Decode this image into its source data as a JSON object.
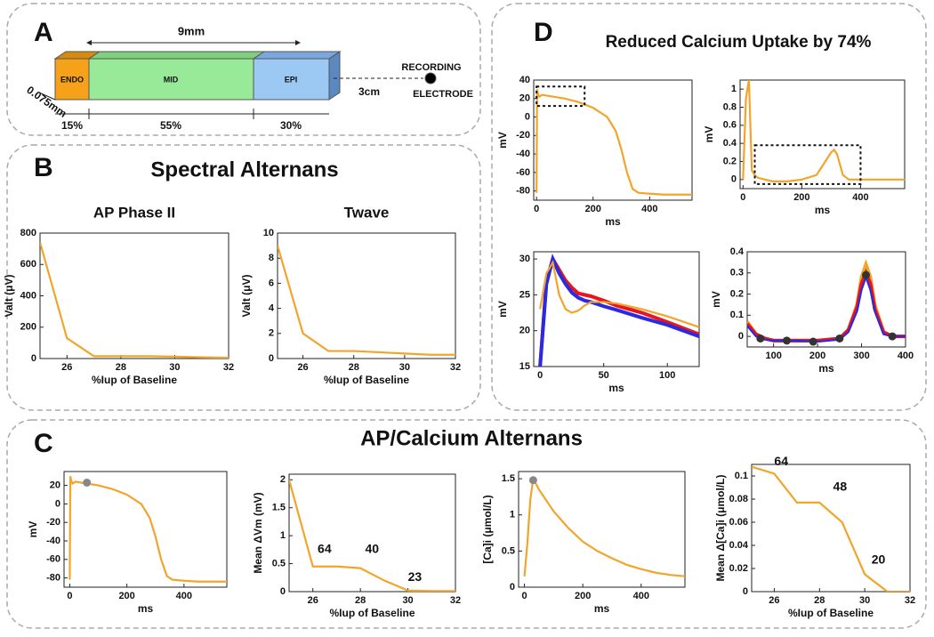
{
  "diagram": {
    "label": "A",
    "length": "9mm",
    "segments": [
      "ENDO",
      "MID",
      "EPI"
    ],
    "thickness": "0.075mm",
    "fractions": [
      "15%",
      "55%",
      "30%"
    ],
    "distance": "3cm",
    "electrode": [
      "RECORDING",
      "ELECTRODE"
    ]
  },
  "panels": {
    "B": {
      "label": "B",
      "title": "Spectral Alternans"
    },
    "C": {
      "label": "C",
      "title": "AP/Calcium Alternans"
    },
    "D": {
      "label": "D",
      "title": "Reduced Calcium Uptake by 74%"
    }
  },
  "chart_data": [
    {
      "type": "line",
      "title": "AP Phase II",
      "xlabel": "%Iup of Baseline",
      "ylabel": "Valt (μV)",
      "xlim": [
        25,
        32
      ],
      "ylim": [
        0,
        800
      ],
      "xticks": [
        26,
        28,
        30,
        32
      ],
      "yticks": [
        0,
        200,
        400,
        600,
        800
      ],
      "x": [
        25,
        26,
        27,
        28,
        29,
        30,
        31,
        32
      ],
      "series": [
        {
          "color": "#f2a52a",
          "values": [
            740,
            130,
            15,
            15,
            15,
            12,
            8,
            5
          ]
        }
      ]
    },
    {
      "type": "line",
      "title": "Twave",
      "xlabel": "%Iup of Baseline",
      "ylabel": "Valt (μV)",
      "xlim": [
        25,
        32
      ],
      "ylim": [
        0,
        10
      ],
      "xticks": [
        26,
        28,
        30,
        32
      ],
      "yticks": [
        0,
        2,
        4,
        6,
        8,
        10
      ],
      "x": [
        25,
        26,
        27,
        28,
        29,
        30,
        31,
        32
      ],
      "series": [
        {
          "color": "#f2a52a",
          "values": [
            9,
            2,
            0.6,
            0.6,
            0.5,
            0.4,
            0.3,
            0.3
          ]
        }
      ]
    },
    {
      "type": "line",
      "xlabel": "ms",
      "ylabel": "mV",
      "xlim": [
        -10,
        550
      ],
      "ylim": [
        -90,
        40
      ],
      "xticks": [
        0,
        200,
        400
      ],
      "yticks": [
        -80,
        -60,
        -40,
        -20,
        0,
        20,
        40
      ],
      "x": [
        0,
        2,
        5,
        10,
        20,
        40,
        60,
        100,
        150,
        200,
        250,
        280,
        300,
        320,
        340,
        360,
        400,
        450,
        500,
        550
      ],
      "series": [
        {
          "color": "#f2a52a",
          "values": [
            -82,
            30,
            25,
            22,
            24,
            23,
            22,
            20,
            16,
            10,
            0,
            -15,
            -35,
            -60,
            -78,
            -82,
            -83,
            -84,
            -84,
            -84
          ]
        }
      ],
      "highlight": {
        "x": [
          0,
          170
        ],
        "y": [
          12,
          33
        ]
      }
    },
    {
      "type": "line",
      "xlabel": "ms",
      "ylabel": "mV",
      "xlim": [
        -10,
        550
      ],
      "ylim": [
        -0.1,
        1.1
      ],
      "xticks": [
        0,
        200,
        400
      ],
      "yticks": [
        0,
        0.2,
        0.4,
        0.6,
        0.8,
        1
      ],
      "x": [
        0,
        10,
        20,
        30,
        40,
        50,
        100,
        150,
        200,
        250,
        280,
        300,
        310,
        320,
        340,
        360,
        400,
        450,
        500,
        550
      ],
      "series": [
        {
          "color": "#f2a52a",
          "values": [
            0,
            0.9,
            1.1,
            0.1,
            0.05,
            0.02,
            -0.02,
            -0.02,
            0,
            0.05,
            0.2,
            0.3,
            0.33,
            0.28,
            0.05,
            0,
            0,
            0,
            0,
            0
          ]
        }
      ],
      "highlight": {
        "x": [
          40,
          400
        ],
        "y": [
          -0.05,
          0.38
        ]
      }
    },
    {
      "type": "line",
      "xlabel": "ms",
      "ylabel": "mV",
      "xlim": [
        -5,
        125
      ],
      "ylim": [
        15,
        31
      ],
      "xticks": [
        0,
        50,
        100
      ],
      "yticks": [
        15,
        20,
        25,
        30
      ],
      "x": [
        0,
        5,
        10,
        15,
        20,
        25,
        30,
        35,
        40,
        50,
        60,
        80,
        100,
        125
      ],
      "series": [
        {
          "color": "#e8141e",
          "values": [
            15,
            27,
            30,
            28.5,
            27,
            26,
            25.2,
            25,
            24.8,
            24.2,
            23.5,
            22.5,
            21.2,
            19.5
          ]
        },
        {
          "color": "#2a2ae0",
          "values": [
            15,
            26.5,
            30,
            28,
            26.5,
            25.3,
            24.6,
            24.2,
            24,
            23.4,
            22.9,
            21.8,
            20.8,
            19.2
          ]
        },
        {
          "color": "#f2a52a",
          "values": [
            23,
            28,
            29.5,
            25,
            23,
            22.5,
            22.8,
            23.5,
            24,
            24,
            23.8,
            23,
            22,
            20.5
          ]
        }
      ]
    },
    {
      "type": "line",
      "xlabel": "ms",
      "ylabel": "mV",
      "xlim": [
        40,
        400
      ],
      "ylim": [
        -0.05,
        0.4
      ],
      "xticks": [
        100,
        200,
        300,
        400
      ],
      "yticks": [
        0,
        0.1,
        0.2,
        0.3,
        0.4
      ],
      "x": [
        40,
        60,
        80,
        100,
        150,
        200,
        250,
        270,
        290,
        300,
        310,
        320,
        330,
        350,
        370,
        400
      ],
      "series": [
        {
          "color": "#f2a52a",
          "values": [
            0.07,
            0.01,
            -0.01,
            -0.02,
            -0.02,
            -0.02,
            -0.01,
            0.03,
            0.15,
            0.28,
            0.34,
            0.28,
            0.15,
            0.02,
            0,
            0
          ]
        },
        {
          "color": "#e8141e",
          "values": [
            0.06,
            0.01,
            -0.01,
            -0.02,
            -0.02,
            -0.02,
            -0.01,
            0.03,
            0.14,
            0.25,
            0.3,
            0.25,
            0.13,
            0.02,
            0,
            0
          ]
        },
        {
          "color": "#2a2ae0",
          "values": [
            0.05,
            0,
            -0.015,
            -0.02,
            -0.02,
            -0.025,
            -0.015,
            0.02,
            0.12,
            0.22,
            0.28,
            0.22,
            0.12,
            0.01,
            0,
            0
          ]
        }
      ],
      "points": {
        "color": "#333333",
        "x": [
          70,
          130,
          190,
          250,
          310,
          370
        ],
        "y": [
          -0.01,
          -0.02,
          -0.025,
          -0.01,
          0.29,
          0
        ]
      }
    },
    {
      "type": "line",
      "xlabel": "ms",
      "ylabel": "mV",
      "xlim": [
        -20,
        550
      ],
      "ylim": [
        -90,
        35
      ],
      "xticks": [
        0,
        200,
        400
      ],
      "yticks": [
        -80,
        -60,
        -40,
        -20,
        0,
        20
      ],
      "x": [
        0,
        2,
        5,
        10,
        20,
        40,
        60,
        100,
        150,
        200,
        250,
        280,
        300,
        320,
        340,
        360,
        400,
        450,
        500,
        550
      ],
      "series": [
        {
          "color": "#f2a52a",
          "values": [
            -82,
            30,
            25,
            22,
            24,
            23,
            22,
            20,
            16,
            10,
            0,
            -15,
            -35,
            -60,
            -78,
            -82,
            -83,
            -84,
            -84,
            -84
          ]
        }
      ],
      "points": {
        "color": "#888888",
        "x": [
          60
        ],
        "y": [
          23
        ]
      }
    },
    {
      "type": "line",
      "xlabel": "%Iup of Baseline",
      "ylabel": "Mean ΔVm (mV)",
      "xlim": [
        25,
        32
      ],
      "ylim": [
        0,
        2.1
      ],
      "xticks": [
        26,
        28,
        30,
        32
      ],
      "yticks": [
        0,
        0.5,
        1,
        1.5,
        2
      ],
      "x": [
        25,
        26,
        27,
        28,
        29,
        30,
        31,
        32
      ],
      "series": [
        {
          "color": "#f2a52a",
          "values": [
            2,
            0.45,
            0.45,
            0.42,
            0.2,
            0.02,
            0.01,
            0.01
          ]
        }
      ],
      "annotations": [
        {
          "text": "64",
          "x": 26.2,
          "y": 0.75
        },
        {
          "text": "40",
          "x": 28.2,
          "y": 0.75
        },
        {
          "text": "23",
          "x": 30,
          "y": 0.25
        }
      ]
    },
    {
      "type": "line",
      "xlabel": "ms",
      "ylabel": "[Ca]i (μmol/L)",
      "xlim": [
        -20,
        550
      ],
      "ylim": [
        0,
        1.6
      ],
      "xticks": [
        0,
        200,
        400
      ],
      "yticks": [
        0,
        0.5,
        1,
        1.5
      ],
      "x": [
        0,
        10,
        20,
        30,
        50,
        100,
        150,
        200,
        250,
        300,
        350,
        400,
        450,
        500,
        550
      ],
      "series": [
        {
          "color": "#f2a52a",
          "values": [
            0.15,
            0.6,
            1.2,
            1.5,
            1.35,
            1.05,
            0.82,
            0.63,
            0.5,
            0.4,
            0.31,
            0.25,
            0.2,
            0.17,
            0.15
          ]
        }
      ],
      "points": {
        "color": "#888888",
        "x": [
          30
        ],
        "y": [
          1.48
        ]
      }
    },
    {
      "type": "line",
      "xlabel": "%Iup of Baseline",
      "ylabel": "Mean Δ[Ca]i (μmol/L)",
      "xlim": [
        25,
        32
      ],
      "ylim": [
        0,
        0.11
      ],
      "xticks": [
        26,
        28,
        30,
        32
      ],
      "yticks": [
        0,
        0.02,
        0.04,
        0.06,
        0.08,
        0.1
      ],
      "x": [
        25,
        26,
        27,
        28,
        29,
        30,
        31,
        32
      ],
      "series": [
        {
          "color": "#f2a52a",
          "values": [
            0.108,
            0.102,
            0.077,
            0.077,
            0.06,
            0.015,
            0,
            0
          ]
        }
      ],
      "annotations": [
        {
          "text": "64",
          "x": 26,
          "y": 0.112
        },
        {
          "text": "48",
          "x": 28.6,
          "y": 0.09
        },
        {
          "text": "20",
          "x": 30.3,
          "y": 0.027
        }
      ]
    }
  ]
}
